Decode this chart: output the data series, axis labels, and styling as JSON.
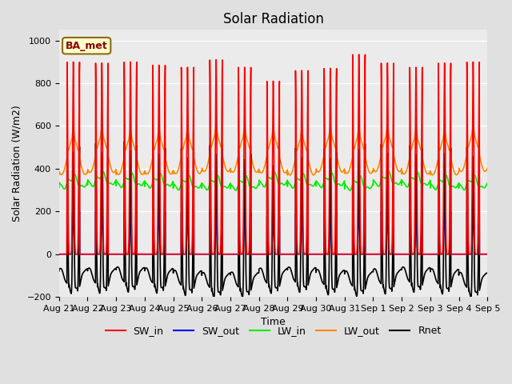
{
  "title": "Solar Radiation",
  "xlabel": "Time",
  "ylabel": "Solar Radiation (W/m2)",
  "ylim": [
    -200,
    1050
  ],
  "background_color": "#e0e0e0",
  "plot_bg_color": "#ebebeb",
  "label_box": "BA_met",
  "series": {
    "SW_in": {
      "color": "#ff0000",
      "lw": 1.2
    },
    "SW_out": {
      "color": "#0000ff",
      "lw": 1.2
    },
    "LW_in": {
      "color": "#00ee00",
      "lw": 1.2
    },
    "LW_out": {
      "color": "#ff8800",
      "lw": 1.2
    },
    "Rnet": {
      "color": "#000000",
      "lw": 1.2
    }
  },
  "tick_labels": [
    "Aug 21",
    "Aug 22",
    "Aug 23",
    "Aug 24",
    "Aug 25",
    "Aug 26",
    "Aug 27",
    "Aug 28",
    "Aug 29",
    "Aug 30",
    "Aug 31",
    "Sep 1",
    "Sep 2",
    "Sep 3",
    "Sep 4",
    "Sep 5"
  ],
  "yticks": [
    -200,
    0,
    200,
    400,
    600,
    800,
    1000
  ],
  "title_fontsize": 12,
  "axis_label_fontsize": 9,
  "tick_fontsize": 8,
  "legend_fontsize": 9,
  "sw_in_peaks": [
    900,
    895,
    900,
    885,
    875,
    910,
    875,
    810,
    860,
    870,
    935,
    895,
    875,
    895,
    900
  ],
  "n_days": 15,
  "pts_per_day": 288
}
